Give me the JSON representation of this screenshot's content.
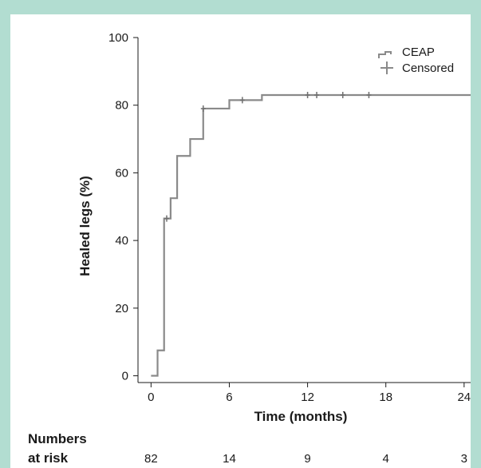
{
  "chart_data": {
    "type": "line",
    "subtype": "kaplan-meier-step",
    "title": "",
    "xlabel": "Time (months)",
    "ylabel": "Healed legs (%)",
    "xlim": [
      -1,
      24.5
    ],
    "ylim": [
      -2,
      100
    ],
    "xticks": [
      0,
      6,
      12,
      18,
      24
    ],
    "yticks": [
      0,
      20,
      40,
      60,
      80,
      100
    ],
    "grid": false,
    "legend": {
      "position": "top-right",
      "entries": [
        {
          "label": "CEAP",
          "symbol": "step-line"
        },
        {
          "label": "Censored",
          "symbol": "plus"
        }
      ]
    },
    "series": [
      {
        "name": "CEAP",
        "color": "#8a8a8a",
        "steps": [
          {
            "x": 0,
            "y": 0
          },
          {
            "x": 0.5,
            "y": 7.5
          },
          {
            "x": 1,
            "y": 46.5
          },
          {
            "x": 1.5,
            "y": 52.5
          },
          {
            "x": 2,
            "y": 65
          },
          {
            "x": 3,
            "y": 70
          },
          {
            "x": 4,
            "y": 79
          },
          {
            "x": 6,
            "y": 81.5
          },
          {
            "x": 8.5,
            "y": 83
          },
          {
            "x": 24.5,
            "y": 83
          }
        ],
        "censored": [
          {
            "x": 1.2,
            "y": 46.5
          },
          {
            "x": 4,
            "y": 79
          },
          {
            "x": 7,
            "y": 81.5
          },
          {
            "x": 12,
            "y": 83
          },
          {
            "x": 12.7,
            "y": 83
          },
          {
            "x": 14.7,
            "y": 83
          },
          {
            "x": 16.7,
            "y": 83
          }
        ]
      }
    ],
    "numbers_at_risk": {
      "header_line1": "Numbers",
      "header_line2": "at risk",
      "values": [
        {
          "x": 0,
          "label": "82"
        },
        {
          "x": 6,
          "label": "14"
        },
        {
          "x": 12,
          "label": "9"
        },
        {
          "x": 18,
          "label": "4"
        },
        {
          "x": 24,
          "label": "3"
        }
      ]
    }
  }
}
